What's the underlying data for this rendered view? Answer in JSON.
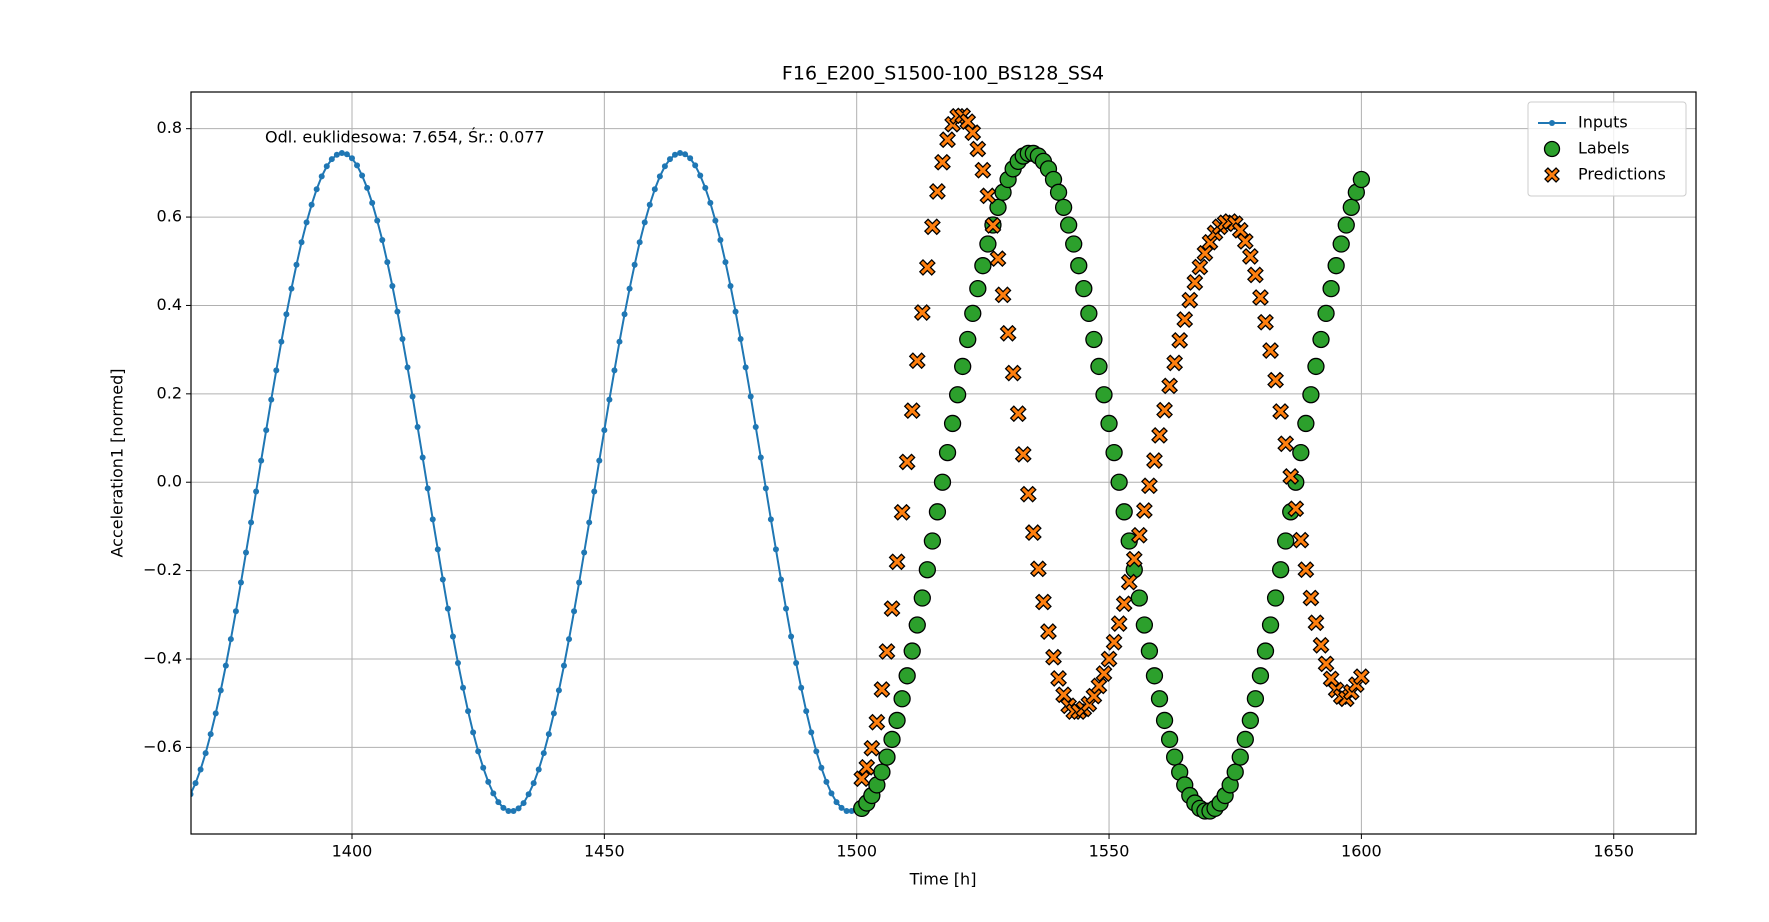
{
  "chart_data": {
    "type": "line",
    "title": "F16_E200_S1500-100_BS128_SS4",
    "annotation": "Odl. euklidesowa: 7.654, Śr.: 0.077",
    "xlabel": "Time [h]",
    "ylabel": "Acceleration1 [normed]",
    "xlim": [
      1368.1,
      1666.3
    ],
    "ylim": [
      -0.796,
      0.883
    ],
    "xticks": [
      1400,
      1450,
      1500,
      1550,
      1600,
      1650
    ],
    "yticks": [
      {
        "value": -0.6,
        "label": "−0.6"
      },
      {
        "value": -0.4,
        "label": "−0.4"
      },
      {
        "value": -0.2,
        "label": "−0.2"
      },
      {
        "value": 0,
        "label": "0.0"
      },
      0.2,
      0.4,
      0.6,
      0.8
    ],
    "grid": true,
    "legend": "upper right",
    "series": [
      {
        "name": "Inputs",
        "color": "#1f77b4",
        "kind": "line",
        "marker": ".",
        "x": [
          1368,
          1369,
          1370,
          1371,
          1372,
          1373,
          1374,
          1375,
          1376,
          1377,
          1378,
          1379,
          1380,
          1381,
          1382,
          1383,
          1384,
          1385,
          1386,
          1387,
          1388,
          1389,
          1390,
          1391,
          1392,
          1393,
          1394,
          1395,
          1396,
          1397,
          1398,
          1399,
          1400,
          1401,
          1402,
          1403,
          1404,
          1405,
          1406,
          1407,
          1408,
          1409,
          1410,
          1411,
          1412,
          1413,
          1414,
          1415,
          1416,
          1417,
          1418,
          1419,
          1420,
          1421,
          1422,
          1423,
          1424,
          1425,
          1426,
          1427,
          1428,
          1429,
          1430,
          1431,
          1432,
          1433,
          1434,
          1435,
          1436,
          1437,
          1438,
          1439,
          1440,
          1441,
          1442,
          1443,
          1444,
          1445,
          1446,
          1447,
          1448,
          1449,
          1450,
          1451,
          1452,
          1453,
          1454,
          1455,
          1456,
          1457,
          1458,
          1459,
          1460,
          1461,
          1462,
          1463,
          1464,
          1465,
          1466,
          1467,
          1468,
          1469,
          1470,
          1471,
          1472,
          1473,
          1474,
          1475,
          1476,
          1477,
          1478,
          1479,
          1480,
          1481,
          1482,
          1483,
          1484,
          1485,
          1486,
          1487,
          1488,
          1489,
          1490,
          1491,
          1492,
          1493,
          1494,
          1495,
          1496,
          1497,
          1498,
          1499,
          1500
        ],
        "values": [
          -0.706,
          -0.681,
          -0.65,
          -0.613,
          -0.57,
          -0.523,
          -0.471,
          -0.415,
          -0.355,
          -0.292,
          -0.227,
          -0.159,
          -0.091,
          -0.021,
          0.049,
          0.118,
          0.187,
          0.253,
          0.318,
          0.38,
          0.438,
          0.492,
          0.543,
          0.588,
          0.628,
          0.663,
          0.692,
          0.715,
          0.731,
          0.741,
          0.745,
          0.742,
          0.733,
          0.717,
          0.694,
          0.666,
          0.632,
          0.592,
          0.548,
          0.498,
          0.444,
          0.386,
          0.324,
          0.26,
          0.194,
          0.125,
          0.056,
          -0.014,
          -0.084,
          -0.152,
          -0.22,
          -0.286,
          -0.349,
          -0.409,
          -0.465,
          -0.518,
          -0.566,
          -0.609,
          -0.646,
          -0.678,
          -0.704,
          -0.724,
          -0.737,
          -0.744,
          -0.744,
          -0.738,
          -0.726,
          -0.706,
          -0.681,
          -0.65,
          -0.613,
          -0.57,
          -0.523,
          -0.471,
          -0.415,
          -0.355,
          -0.292,
          -0.227,
          -0.159,
          -0.091,
          -0.021,
          0.049,
          0.118,
          0.187,
          0.253,
          0.318,
          0.38,
          0.438,
          0.492,
          0.543,
          0.588,
          0.628,
          0.663,
          0.692,
          0.715,
          0.731,
          0.741,
          0.745,
          0.742,
          0.733,
          0.717,
          0.694,
          0.666,
          0.632,
          0.592,
          0.548,
          0.498,
          0.444,
          0.386,
          0.324,
          0.26,
          0.194,
          0.125,
          0.056,
          -0.014,
          -0.084,
          -0.152,
          -0.22,
          -0.286,
          -0.349,
          -0.409,
          -0.465,
          -0.518,
          -0.566,
          -0.609,
          -0.646,
          -0.678,
          -0.704,
          -0.724,
          -0.737,
          -0.744,
          -0.744,
          -0.738
        ]
      },
      {
        "name": "Labels",
        "color": "#2ca02c",
        "kind": "scatter",
        "marker": "o",
        "x": [
          1501,
          1502,
          1503,
          1504,
          1505,
          1506,
          1507,
          1508,
          1509,
          1510,
          1511,
          1512,
          1513,
          1514,
          1515,
          1516,
          1517,
          1518,
          1519,
          1520,
          1521,
          1522,
          1523,
          1524,
          1525,
          1526,
          1527,
          1528,
          1529,
          1530,
          1531,
          1532,
          1533,
          1534,
          1535,
          1536,
          1537,
          1538,
          1539,
          1540,
          1541,
          1542,
          1543,
          1544,
          1545,
          1546,
          1547,
          1548,
          1549,
          1550,
          1551,
          1552,
          1553,
          1554,
          1555,
          1556,
          1557,
          1558,
          1559,
          1560,
          1561,
          1562,
          1563,
          1564,
          1565,
          1566,
          1567,
          1568,
          1569,
          1570,
          1571,
          1572,
          1573,
          1574,
          1575,
          1576,
          1577,
          1578,
          1579,
          1580,
          1581,
          1582,
          1583,
          1584,
          1585,
          1586,
          1587,
          1588,
          1589,
          1590,
          1591,
          1592,
          1593,
          1594,
          1595,
          1596,
          1597,
          1598,
          1599,
          1600
        ],
        "values": [
          -0.738,
          -0.726,
          -0.709,
          -0.685,
          -0.656,
          -0.622,
          -0.582,
          -0.539,
          -0.49,
          -0.438,
          -0.382,
          -0.323,
          -0.262,
          -0.198,
          -0.133,
          -0.067,
          0,
          0.067,
          0.133,
          0.198,
          0.262,
          0.323,
          0.382,
          0.438,
          0.49,
          0.539,
          0.582,
          0.622,
          0.656,
          0.685,
          0.709,
          0.726,
          0.738,
          0.744,
          0.744,
          0.738,
          0.726,
          0.709,
          0.685,
          0.656,
          0.622,
          0.582,
          0.539,
          0.49,
          0.438,
          0.382,
          0.323,
          0.262,
          0.198,
          0.133,
          0.067,
          0,
          -0.067,
          -0.133,
          -0.198,
          -0.262,
          -0.323,
          -0.382,
          -0.438,
          -0.49,
          -0.539,
          -0.582,
          -0.622,
          -0.656,
          -0.685,
          -0.709,
          -0.726,
          -0.738,
          -0.744,
          -0.744,
          -0.738,
          -0.726,
          -0.709,
          -0.685,
          -0.656,
          -0.622,
          -0.582,
          -0.539,
          -0.49,
          -0.438,
          -0.382,
          -0.323,
          -0.262,
          -0.198,
          -0.133,
          -0.067,
          0,
          0.067,
          0.133,
          0.198,
          0.262,
          0.323,
          0.382,
          0.438,
          0.49,
          0.539,
          0.582,
          0.622,
          0.656,
          0.685
        ]
      },
      {
        "name": "Predictions",
        "color": "#ff7f0e",
        "kind": "scatter",
        "marker": "X",
        "x": [
          1501,
          1502,
          1503,
          1504,
          1505,
          1506,
          1507,
          1508,
          1509,
          1510,
          1511,
          1512,
          1513,
          1514,
          1515,
          1516,
          1517,
          1518,
          1519,
          1520,
          1521,
          1522,
          1523,
          1524,
          1525,
          1526,
          1527,
          1528,
          1529,
          1530,
          1531,
          1532,
          1533,
          1534,
          1535,
          1536,
          1537,
          1538,
          1539,
          1540,
          1541,
          1542,
          1543,
          1544,
          1545,
          1546,
          1547,
          1548,
          1549,
          1550,
          1551,
          1552,
          1553,
          1554,
          1555,
          1556,
          1557,
          1558,
          1559,
          1560,
          1561,
          1562,
          1563,
          1564,
          1565,
          1566,
          1567,
          1568,
          1569,
          1570,
          1571,
          1572,
          1573,
          1574,
          1575,
          1576,
          1577,
          1578,
          1579,
          1580,
          1581,
          1582,
          1583,
          1584,
          1585,
          1586,
          1587,
          1588,
          1589,
          1590,
          1591,
          1592,
          1593,
          1594,
          1595,
          1596,
          1597,
          1598,
          1599,
          1600
        ],
        "values": [
          -0.671,
          -0.645,
          -0.602,
          -0.543,
          -0.469,
          -0.383,
          -0.286,
          -0.18,
          -0.068,
          0.046,
          0.162,
          0.275,
          0.384,
          0.486,
          0.578,
          0.658,
          0.724,
          0.775,
          0.81,
          0.828,
          0.829,
          0.816,
          0.791,
          0.754,
          0.706,
          0.648,
          0.581,
          0.506,
          0.424,
          0.337,
          0.247,
          0.155,
          0.063,
          -0.027,
          -0.114,
          -0.196,
          -0.271,
          -0.338,
          -0.396,
          -0.444,
          -0.481,
          -0.506,
          -0.519,
          -0.519,
          -0.513,
          -0.502,
          -0.484,
          -0.461,
          -0.433,
          -0.4,
          -0.362,
          -0.32,
          -0.275,
          -0.226,
          -0.174,
          -0.12,
          -0.064,
          -0.008,
          0.049,
          0.106,
          0.163,
          0.218,
          0.27,
          0.321,
          0.368,
          0.412,
          0.452,
          0.487,
          0.518,
          0.543,
          0.564,
          0.578,
          0.587,
          0.59,
          0.585,
          0.57,
          0.545,
          0.511,
          0.469,
          0.418,
          0.362,
          0.298,
          0.231,
          0.16,
          0.087,
          0.013,
          -0.06,
          -0.131,
          -0.198,
          -0.262,
          -0.318,
          -0.369,
          -0.411,
          -0.445,
          -0.47,
          -0.485,
          -0.49,
          -0.475,
          -0.458,
          -0.44
        ]
      }
    ]
  }
}
